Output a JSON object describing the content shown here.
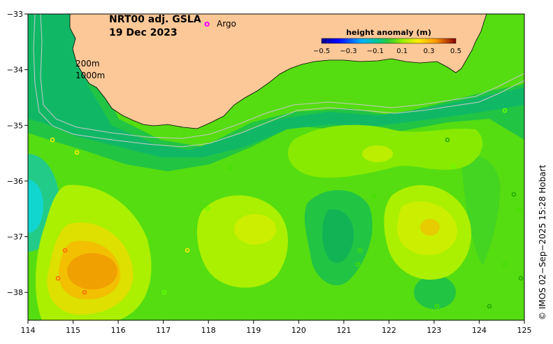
{
  "title": {
    "product": "NRT00 adj. GSLA",
    "date": "19 Dec 2023"
  },
  "legend": {
    "argo_symbol": "o",
    "argo_label": "Argo",
    "argo_color": "#ff00ff"
  },
  "colorbar": {
    "title": "height anomaly (m)",
    "ticks": [
      "−0.5",
      "−0.3",
      "−0.1",
      "0.1",
      "0.3",
      "0.5"
    ],
    "range": [
      -0.5,
      0.5
    ]
  },
  "isobaths": {
    "shallow_label": "200m",
    "deep_label": "1000m",
    "color": "#c8c8c8"
  },
  "axes": {
    "x_ticks": [
      "114",
      "115",
      "116",
      "117",
      "118",
      "119",
      "120",
      "121",
      "122",
      "123",
      "124",
      "125"
    ],
    "y_ticks": [
      "−33",
      "−34",
      "−35",
      "−36",
      "−37",
      "−38"
    ],
    "lon_range": [
      114,
      125
    ],
    "lat_range": [
      -38.5,
      -33
    ]
  },
  "colors": {
    "land": "#fdc897",
    "coast": "#000000",
    "background_sla": "#55dd11"
  },
  "credit": "© IMOS 02−Sep−2025 15:28 Hobart"
}
